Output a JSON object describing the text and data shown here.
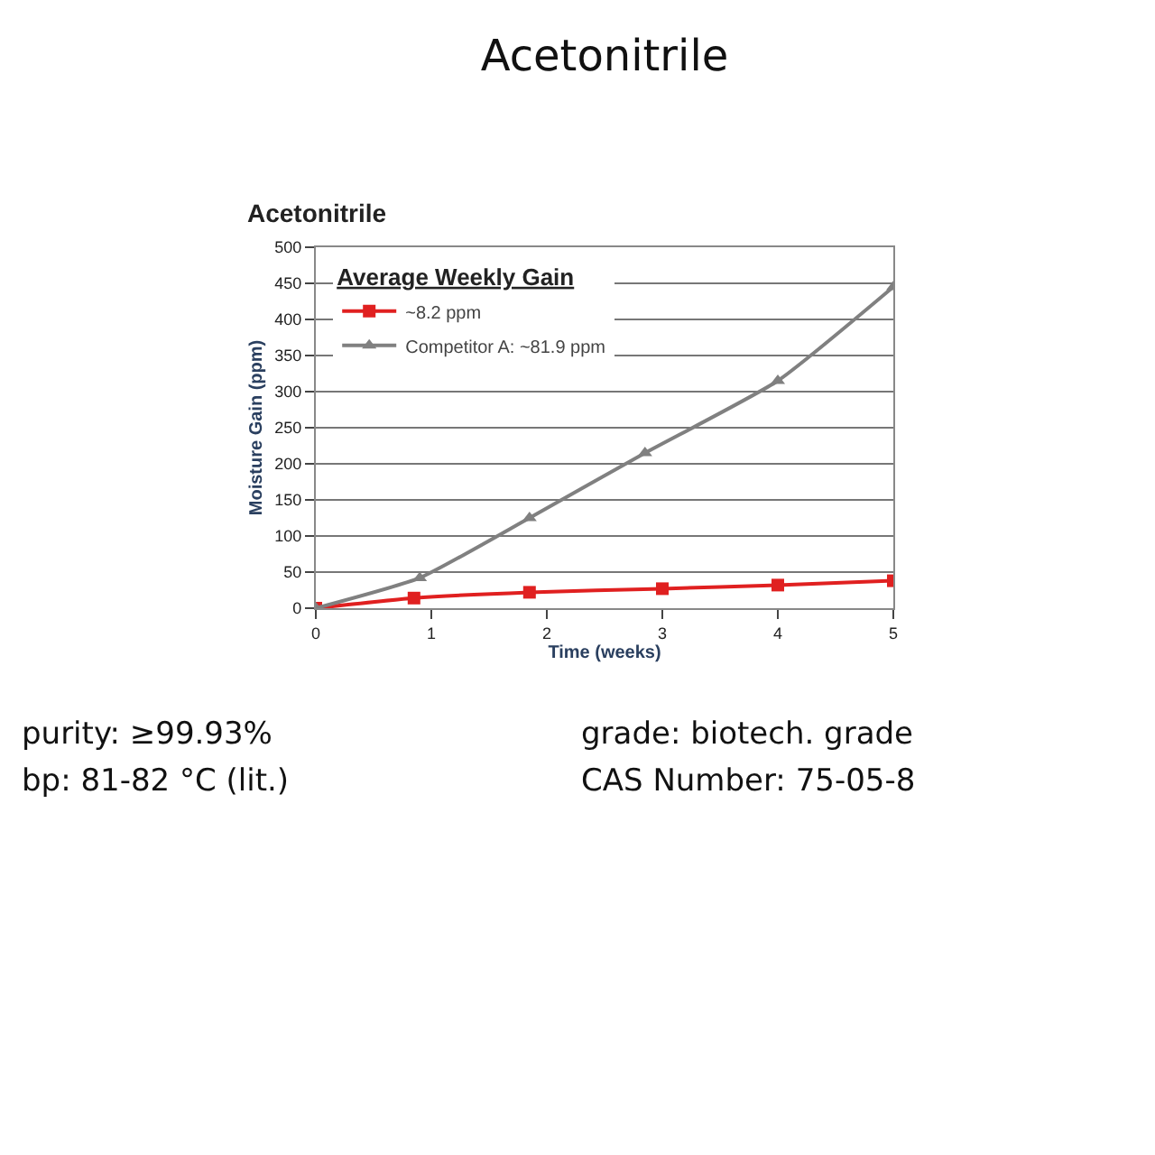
{
  "chart_data": {
    "type": "line",
    "title": "Acetonitrile",
    "subtitle": "Acetonitrile",
    "xlabel": "Time (weeks)",
    "ylabel": "Moisture Gain (ppm)",
    "legend_title": "Average Weekly Gain",
    "series": [
      {
        "name": "~8.2 ppm",
        "color": "#e02020",
        "marker": "square",
        "x": [
          0,
          0.85,
          1.85,
          3,
          4,
          5
        ],
        "values": [
          0,
          14,
          22,
          27,
          32,
          38
        ]
      },
      {
        "name": "Competitor A: ~81.9 ppm",
        "color": "#808080",
        "marker": "triangle",
        "x": [
          0,
          0.9,
          1.85,
          2.85,
          4,
          5
        ],
        "values": [
          0,
          42,
          125,
          215,
          315,
          445
        ]
      }
    ],
    "xlim": [
      0,
      5
    ],
    "xticks": [
      0,
      1,
      2,
      3,
      4,
      5
    ],
    "ylim": [
      0,
      500
    ],
    "yticks": [
      0,
      50,
      100,
      150,
      200,
      250,
      300,
      350,
      400,
      450,
      500
    ],
    "grid": "y",
    "legend": "top left",
    "line_style": "solid",
    "annotations": [
      "purity: ≥99.93%",
      "bp: 81-82 °C (lit.)",
      "grade: biotech. grade",
      "CAS Number: 75-05-8"
    ]
  }
}
